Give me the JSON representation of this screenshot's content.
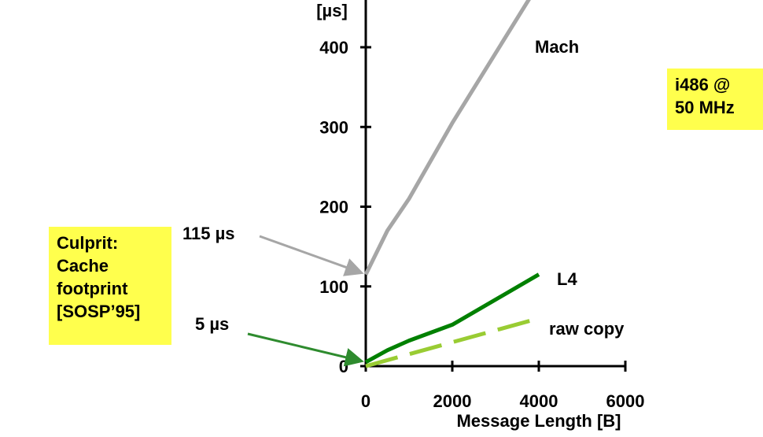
{
  "chart_data": {
    "type": "line",
    "ylabel": "[µs]",
    "xlabel": "Message Length [B]",
    "xlim": [
      0,
      6000
    ],
    "ylim": [
      0,
      400
    ],
    "x_ticks": [
      "0",
      "2000",
      "4000",
      "6000"
    ],
    "y_ticks": [
      "0",
      "100",
      "200",
      "300",
      "400"
    ],
    "grid": false,
    "series": [
      {
        "name": "Mach",
        "color": "#a6a6a6",
        "style": "solid",
        "x": [
          0,
          500,
          1000,
          2000,
          4000
        ],
        "y": [
          115,
          170,
          210,
          305,
          480
        ]
      },
      {
        "name": "L4",
        "color": "#008000",
        "style": "solid",
        "x": [
          0,
          500,
          1000,
          2000,
          4000
        ],
        "y": [
          5,
          20,
          32,
          52,
          115
        ]
      },
      {
        "name": "raw copy",
        "color": "#99cc33",
        "style": "dashed",
        "x": [
          0,
          4000
        ],
        "y": [
          0,
          60
        ]
      }
    ],
    "annotations": [
      {
        "text": "115 µs",
        "x": 0,
        "y": 115,
        "color": "#a6a6a6"
      },
      {
        "text": "5 µs",
        "x": 0,
        "y": 5,
        "color": "#2e8b2e"
      }
    ]
  },
  "notes": {
    "culprit": [
      "Culprit:",
      "Cache",
      "footprint",
      "[SOSP’95]"
    ],
    "cpu": [
      "i486 @",
      "50 MHz"
    ]
  }
}
